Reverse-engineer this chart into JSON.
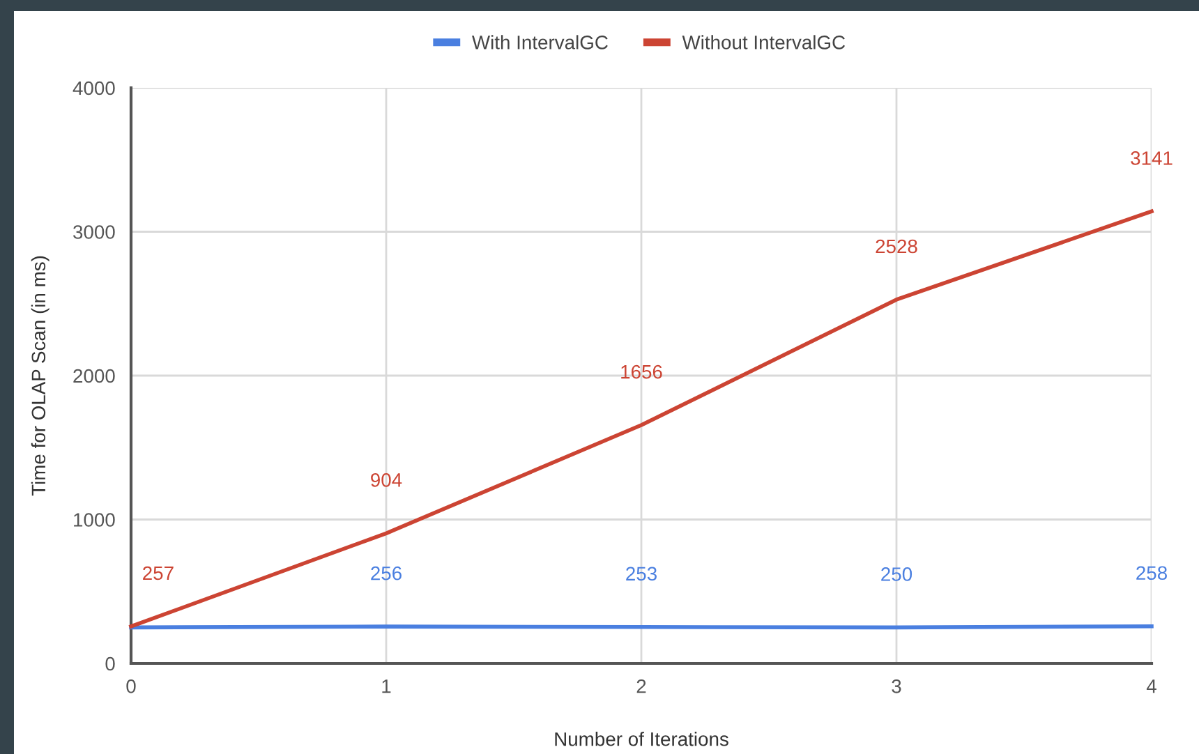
{
  "chart_data": {
    "type": "line",
    "xlabel": "Number of Iterations",
    "ylabel": "Time for OLAP Scan (in ms)",
    "x": [
      0,
      1,
      2,
      3,
      4
    ],
    "series": [
      {
        "name": "With IntervalGC",
        "color": "#4a7fe0",
        "values": [
          250,
          256,
          253,
          250,
          258
        ],
        "value_labels": [
          null,
          "256",
          "253",
          "250",
          "258"
        ]
      },
      {
        "name": "Without IntervalGC",
        "color": "#cc4433",
        "values": [
          257,
          904,
          1656,
          2528,
          3141
        ],
        "value_labels": [
          "257",
          "904",
          "1656",
          "2528",
          "3141"
        ]
      }
    ],
    "xlim": [
      0,
      4
    ],
    "xticks": [
      0,
      1,
      2,
      3,
      4
    ],
    "ylim": [
      0,
      4000
    ],
    "yticks": [
      0,
      1000,
      2000,
      3000,
      4000
    ],
    "grid": true,
    "legend": "top",
    "marker": "none",
    "line_style": "solid"
  }
}
